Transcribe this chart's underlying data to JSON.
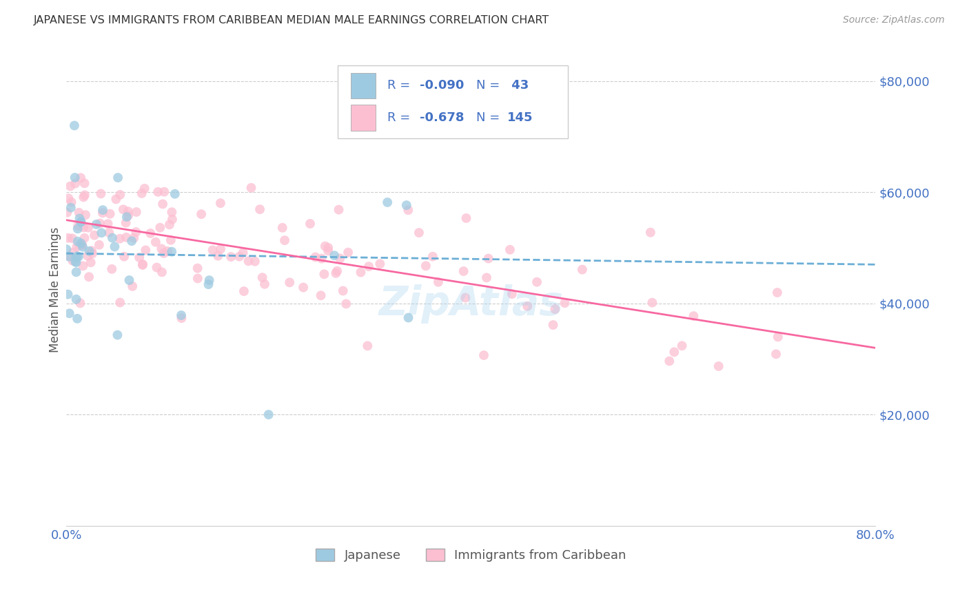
{
  "title": "JAPANESE VS IMMIGRANTS FROM CARIBBEAN MEDIAN MALE EARNINGS CORRELATION CHART",
  "source": "Source: ZipAtlas.com",
  "ylabel": "Median Male Earnings",
  "xlim": [
    0.0,
    0.8
  ],
  "ylim": [
    0,
    85000
  ],
  "color_japanese": "#9ecae1",
  "color_caribbean": "#fcbfd2",
  "color_line_japanese": "#6baed6",
  "color_line_caribbean": "#f768a1",
  "color_text_blue": "#4472c4",
  "color_axis": "#cccccc",
  "background_color": "#ffffff",
  "watermark": "ZipAtlas",
  "legend_r1_prefix": "R = ",
  "legend_r1_val": "-0.090",
  "legend_n1_prefix": "N = ",
  "legend_n1_val": " 43",
  "legend_r2_prefix": "R = ",
  "legend_r2_val": "-0.678",
  "legend_n2_prefix": "N = ",
  "legend_n2_val": "145",
  "seed": 12345
}
